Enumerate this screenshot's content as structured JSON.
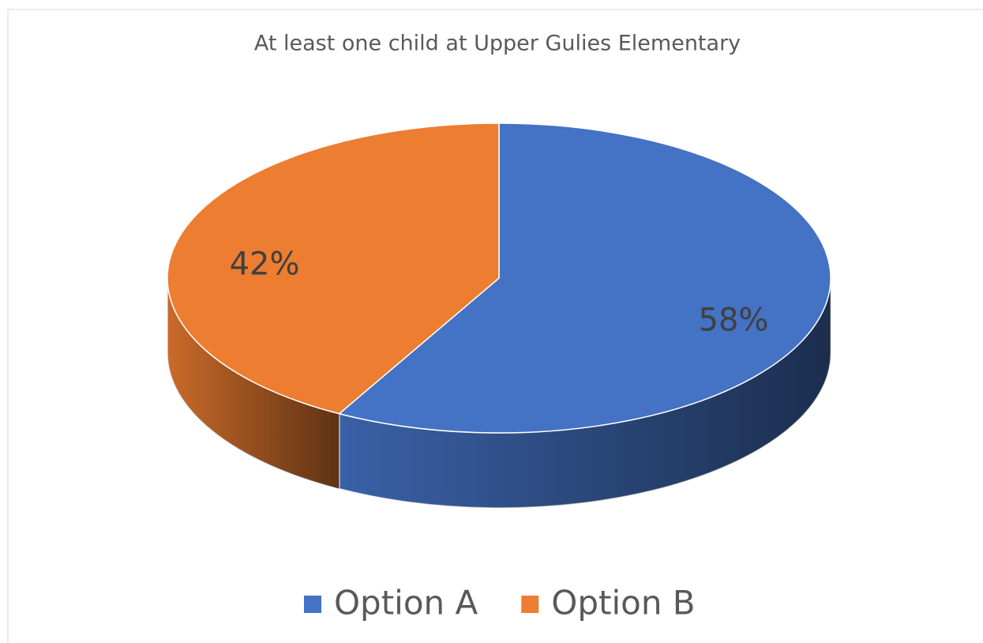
{
  "chart_data": {
    "type": "pie",
    "title": "At least one child at Upper Gulies Elementary",
    "categories": [
      "Option A",
      "Option B"
    ],
    "values": [
      58,
      42
    ],
    "value_labels": [
      "58%",
      "42%"
    ],
    "colors": [
      "#4472c4",
      "#ed7d31"
    ],
    "legend": "bottom"
  }
}
